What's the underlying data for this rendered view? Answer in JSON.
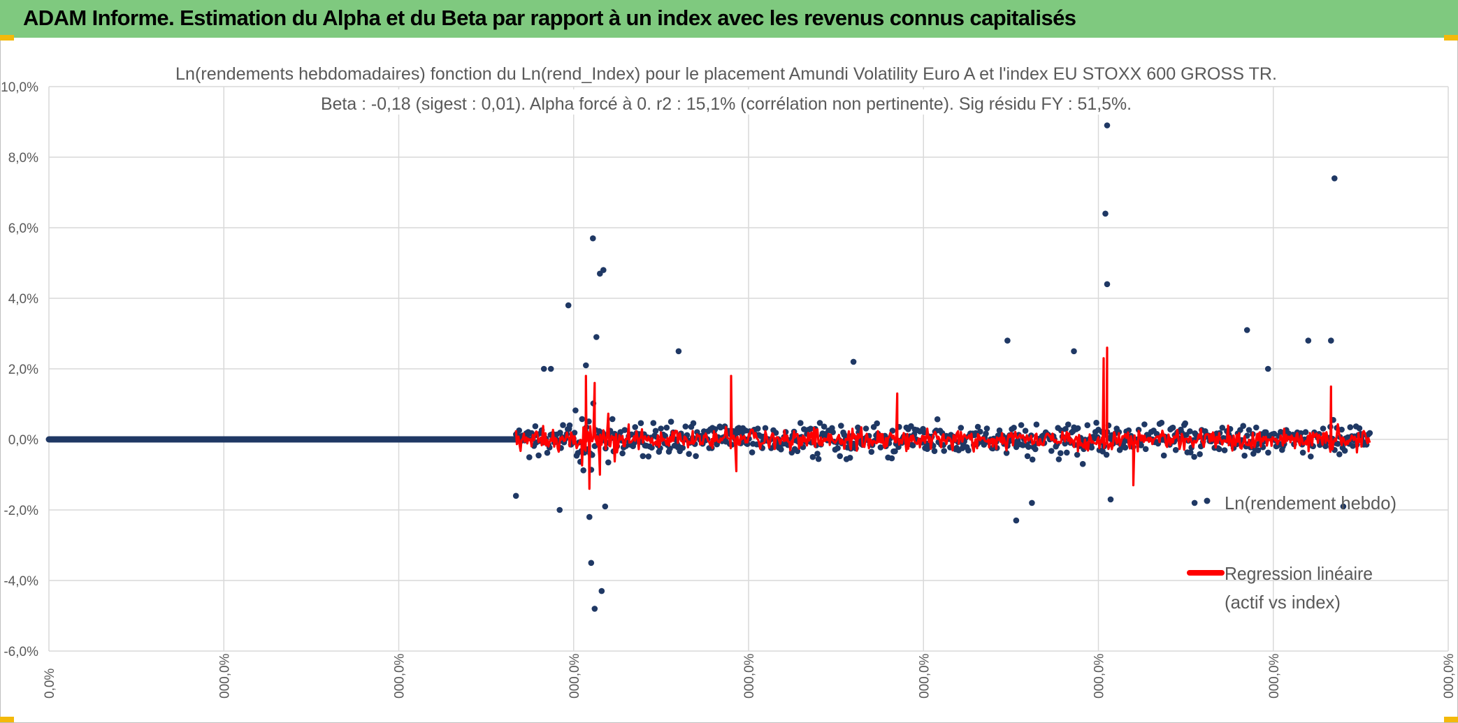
{
  "header": {
    "title": "ADAM Informe. Estimation du Alpha et du Beta par rapport à un index avec les revenus connus capitalisés"
  },
  "colors": {
    "header_bg": "#7fc97f",
    "accent": "#f3b90b",
    "points": "#1f3864",
    "regression": "#ff0000",
    "grid": "#d9d9d9",
    "text": "#595959"
  },
  "chart_data": {
    "type": "scatter",
    "title_line1": "Ln(rendements hebdomadaires) fonction du Ln(rend_Index) pour le placement Amundi Volatility Euro A  et l'index EU STOXX 600 GROSS TR.",
    "title_line2": "Beta : -0,18 (sigest : 0,01). Alpha forcé à 0. r2 : 15,1% (corrélation non pertinente). Sig résidu FY : 51,5%.",
    "ylim": [
      -6,
      10
    ],
    "y_ticks": [
      "10,0%",
      "8,0%",
      "6,0%",
      "4,0%",
      "2,0%",
      "0,0%",
      "-2,0%",
      "-4,0%",
      "-6,0%"
    ],
    "x_ticks": [
      "0,0%",
      "000,0%",
      "000,0%",
      "000,0%",
      "000,0%",
      "000,0%",
      "000,0%",
      "000,0%",
      "000,0%"
    ],
    "grid": true,
    "legend": [
      {
        "label": "Ln(rendement hebdo)",
        "marker": "point"
      },
      {
        "label": "Regression linéaire",
        "label2": "(actif vs index)",
        "marker": "line"
      }
    ],
    "series": [
      {
        "name": "Ln(rendement hebdo)",
        "zero_segment_x": [
          0,
          2.67
        ],
        "noise_segment_x": [
          2.67,
          7.55
        ],
        "typical_spread": 0.6,
        "outliers": [
          {
            "x": 2.67,
            "y": -1.6
          },
          {
            "x": 2.83,
            "y": 2.0
          },
          {
            "x": 2.87,
            "y": 2.0
          },
          {
            "x": 2.92,
            "y": -2.0
          },
          {
            "x": 2.97,
            "y": 3.8
          },
          {
            "x": 3.07,
            "y": 2.1
          },
          {
            "x": 3.09,
            "y": -2.2
          },
          {
            "x": 3.1,
            "y": -3.5
          },
          {
            "x": 3.11,
            "y": 5.7
          },
          {
            "x": 3.12,
            "y": -4.8
          },
          {
            "x": 3.13,
            "y": 2.9
          },
          {
            "x": 3.15,
            "y": 4.7
          },
          {
            "x": 3.17,
            "y": 4.8
          },
          {
            "x": 3.16,
            "y": -4.3
          },
          {
            "x": 3.18,
            "y": -1.9
          },
          {
            "x": 3.6,
            "y": 2.5
          },
          {
            "x": 4.6,
            "y": 2.2
          },
          {
            "x": 5.48,
            "y": 2.8
          },
          {
            "x": 5.53,
            "y": -2.3
          },
          {
            "x": 5.62,
            "y": -1.8
          },
          {
            "x": 5.86,
            "y": 2.5
          },
          {
            "x": 6.05,
            "y": 8.9
          },
          {
            "x": 6.04,
            "y": 6.4
          },
          {
            "x": 6.05,
            "y": 4.4
          },
          {
            "x": 6.07,
            "y": -1.7
          },
          {
            "x": 6.55,
            "y": -1.8
          },
          {
            "x": 6.85,
            "y": 3.1
          },
          {
            "x": 6.97,
            "y": 2.0
          },
          {
            "x": 7.2,
            "y": 2.8
          },
          {
            "x": 7.33,
            "y": 2.8
          },
          {
            "x": 7.35,
            "y": 7.4
          },
          {
            "x": 7.4,
            "y": -1.9
          }
        ]
      },
      {
        "name": "Regression linéaire",
        "beta": -0.18,
        "spikes": [
          {
            "x": 3.07,
            "y": 1.8
          },
          {
            "x": 3.09,
            "y": -1.4
          },
          {
            "x": 3.12,
            "y": 1.6
          },
          {
            "x": 3.15,
            "y": -1.0
          },
          {
            "x": 3.9,
            "y": 1.8
          },
          {
            "x": 3.93,
            "y": -0.9
          },
          {
            "x": 4.85,
            "y": 1.3
          },
          {
            "x": 6.05,
            "y": 2.6
          },
          {
            "x": 6.03,
            "y": 2.3
          },
          {
            "x": 6.2,
            "y": -1.3
          },
          {
            "x": 7.33,
            "y": 1.5
          }
        ]
      }
    ]
  }
}
